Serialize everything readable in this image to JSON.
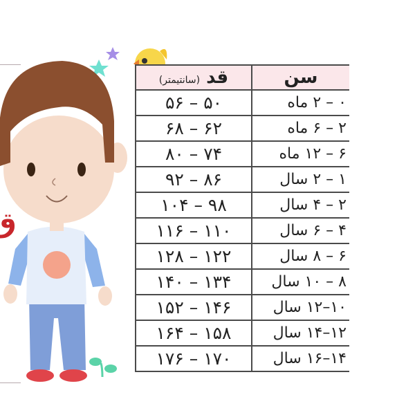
{
  "table": {
    "headers": {
      "age": "سن",
      "height": "قد",
      "height_unit": "(سانتیمتر)"
    },
    "rows": [
      {
        "age": "۰ – ۲ ماه",
        "height": "۵۰ – ۵۶"
      },
      {
        "age": "۲ – ۶ ماه",
        "height": "۶۲ – ۶۸"
      },
      {
        "age": "۶ – ۱۲ ماه",
        "height": "۷۴ – ۸۰"
      },
      {
        "age": "۱ – ۲ سال",
        "height": "۸۶ – ۹۲"
      },
      {
        "age": "۲ – ۴ سال",
        "height": "۹۸ – ۱۰۴"
      },
      {
        "age": "۴ – ۶ سال",
        "height": "۱۱۰ – ۱۱۶"
      },
      {
        "age": "۶ – ۸ سال",
        "height": "۱۲۲ – ۱۲۸"
      },
      {
        "age": "۸ – ۱۰ سال",
        "height": "۱۳۴ – ۱۴۰"
      },
      {
        "age": "۱۰–۱۲ سال",
        "height": "۱۴۶ – ۱۵۲"
      },
      {
        "age": "۱۲–۱۴ سال",
        "height": "۱۵۸ – ۱۶۴"
      },
      {
        "age": "۱۴–۱۶ سال",
        "height": "۱۷۰ – ۱۷۶"
      }
    ]
  },
  "side_text": "ق",
  "colors": {
    "header_bg": "#fbe7ea",
    "hair": "#8b4f2f",
    "skin": "#f6dccb",
    "shirt": "#e6eefa",
    "sleeve": "#8db3ea",
    "pants": "#7f9ed8",
    "shoes": "#e0444a",
    "accent_red": "#c8262b"
  }
}
